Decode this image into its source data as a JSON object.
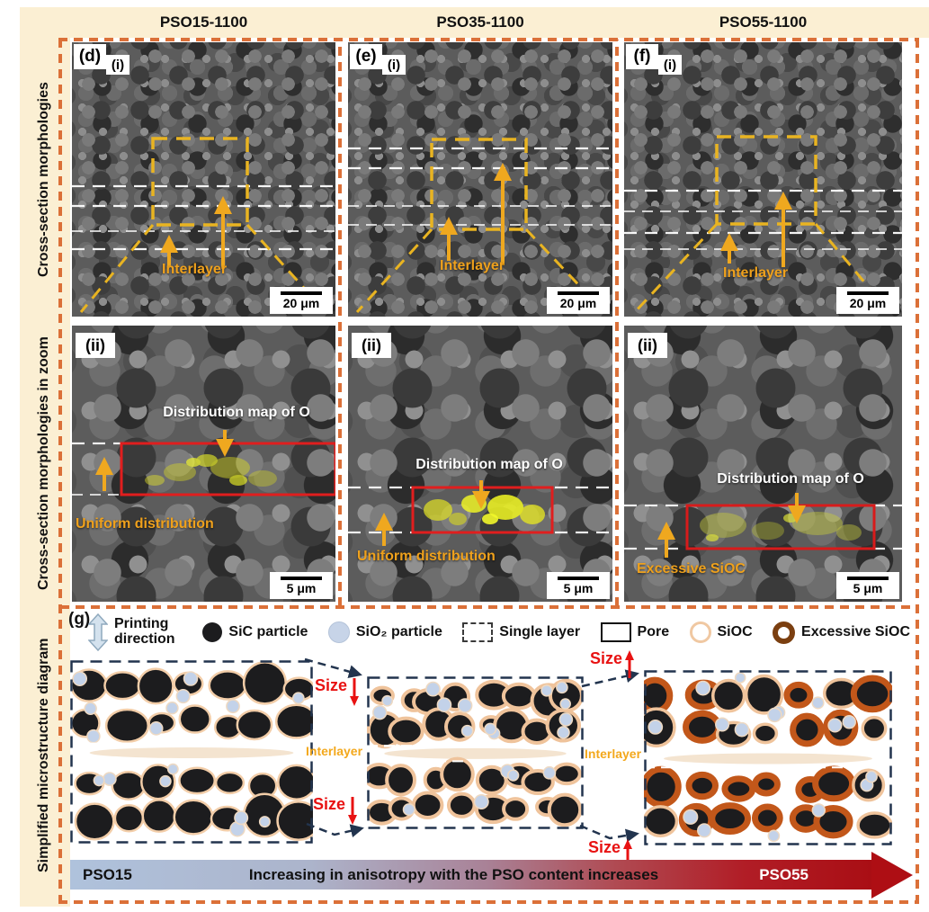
{
  "header": {
    "columns": [
      "PSO15-1100",
      "PSO35-1100",
      "PSO55-1100"
    ]
  },
  "sidebar": {
    "rows": [
      "Cross-section morphologies",
      "Cross-section morphologies in zoom",
      "Simplified microstructure diagram"
    ]
  },
  "panels_row1": [
    {
      "label": "(d)",
      "sub": "(i)",
      "interlayer_label": "Interlayer",
      "scale_label": "20 μm"
    },
    {
      "label": "(e)",
      "sub": "(i)",
      "interlayer_label": "Interlayer",
      "scale_label": "20 μm"
    },
    {
      "label": "(f)",
      "sub": "(i)",
      "interlayer_label": "Interlayer",
      "scale_label": "20 μm"
    }
  ],
  "panels_row2": [
    {
      "label": "(ii)",
      "map_label": "Distribution map of O",
      "annotation": "Uniform distribution",
      "scale_label": "5 μm"
    },
    {
      "label": "(ii)",
      "map_label": "Distribution map of O",
      "annotation": "Uniform distribution",
      "scale_label": "5 μm"
    },
    {
      "label": "(ii)",
      "map_label": "Distribution map of O",
      "annotation": "Excessive SiOC",
      "scale_label": "5 μm"
    }
  ],
  "diagram": {
    "label": "(g)",
    "legend": [
      {
        "icon": "printing-direction-arrow",
        "label": "Printing direction"
      },
      {
        "icon": "sic-particle",
        "label": "SiC particle"
      },
      {
        "icon": "sio2-particle",
        "label": "SiO₂ particle"
      },
      {
        "icon": "single-layer",
        "label": "Single layer"
      },
      {
        "icon": "pore",
        "label": "Pore"
      },
      {
        "icon": "sioc-ring",
        "label": "SiOC"
      },
      {
        "icon": "excessive-sioc-ring",
        "label": "Excessive SiOC"
      }
    ],
    "interlayer_labels": [
      "Interlayer",
      "Interlayer"
    ],
    "size_label": "Size",
    "arrow_bar": {
      "left": "PSO15",
      "center": "Increasing in anisotropy with the PSO content increases",
      "right": "PSO55"
    },
    "schematics": [
      {
        "name": "PSO15",
        "seed": 11,
        "cols": 7,
        "rows": 2,
        "rmin": 14,
        "rmax": 25,
        "ring": "#F2CDA8",
        "ringWidth": 2.5,
        "excFrac": 0,
        "excColor": "#C2571A",
        "dots": 16
      },
      {
        "name": "PSO35",
        "seed": 23,
        "cols": 8,
        "rows": 2,
        "rmin": 11,
        "rmax": 19,
        "ring": "#EFC39B",
        "ringWidth": 4,
        "excFrac": 0,
        "excColor": "#C2571A",
        "dots": 18
      },
      {
        "name": "PSO55",
        "seed": 37,
        "cols": 7,
        "rows": 2,
        "rmin": 12,
        "rmax": 21,
        "ring": "#EFC39B",
        "ringWidth": 3.5,
        "excFrac": 0.5,
        "excColor": "#C2571A",
        "dots": 16
      }
    ]
  },
  "colors": {
    "frame_border": "#DB7038",
    "band_bg": "#FBEFD3",
    "annotation_gold": "#EFA11C",
    "dashed_yellow": "#E9B421",
    "red_box": "#E01E1E",
    "size_red": "#E81212",
    "navy": "#22344E",
    "sioc_ring": "#F0C8A2",
    "excessive_ring": "#7B3F10",
    "gradient_left": "#AFC2DC",
    "gradient_right": "#A90E14"
  }
}
